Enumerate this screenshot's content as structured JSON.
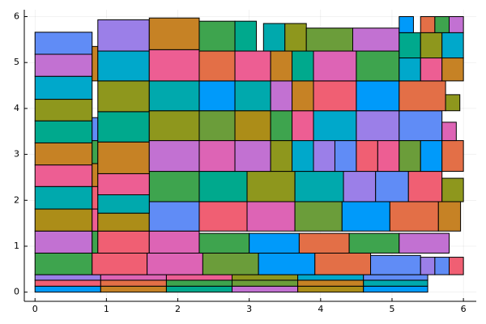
{
  "chart_data": {
    "type": "rectangles",
    "xlim": [
      -0.15,
      6.18
    ],
    "ylim": [
      -0.2,
      6.15
    ],
    "xticks": [
      0,
      1,
      2,
      3,
      4,
      5,
      6
    ],
    "yticks": [
      0,
      1,
      2,
      3,
      4,
      5,
      6
    ],
    "grid": true,
    "rects": [
      [
        0,
        0,
        0.92,
        0.13
      ],
      [
        0.92,
        0,
        1.84,
        0.13
      ],
      [
        1.84,
        0,
        2.76,
        0.13
      ],
      [
        2.76,
        0,
        3.68,
        0.13
      ],
      [
        3.68,
        0,
        4.6,
        0.13
      ],
      [
        4.6,
        0,
        5.5,
        0.13
      ],
      [
        0,
        0.13,
        0.92,
        0.26
      ],
      [
        0.92,
        0.13,
        1.84,
        0.26
      ],
      [
        1.84,
        0.13,
        2.76,
        0.26
      ],
      [
        2.76,
        0.13,
        3.68,
        0.26
      ],
      [
        3.68,
        0.13,
        4.6,
        0.26
      ],
      [
        4.6,
        0.13,
        5.5,
        0.26
      ],
      [
        0,
        0.26,
        0.92,
        0.38
      ],
      [
        0.92,
        0.26,
        1.84,
        0.38
      ],
      [
        1.84,
        0.26,
        2.76,
        0.38
      ],
      [
        2.76,
        0.26,
        3.68,
        0.38
      ],
      [
        3.68,
        0.26,
        4.6,
        0.38
      ],
      [
        4.6,
        0.26,
        5.5,
        0.38
      ],
      [
        0,
        0.38,
        0.8,
        0.85
      ],
      [
        0.8,
        0.38,
        1.57,
        0.85
      ],
      [
        1.57,
        0.38,
        2.35,
        0.85
      ],
      [
        2.35,
        0.38,
        3.13,
        0.85
      ],
      [
        3.13,
        0.38,
        3.92,
        0.85
      ],
      [
        3.92,
        0.38,
        4.7,
        0.85
      ],
      [
        4.7,
        0.38,
        5.4,
        0.8
      ],
      [
        5.4,
        0.38,
        5.6,
        0.76
      ],
      [
        5.6,
        0.38,
        5.8,
        0.76
      ],
      [
        5.8,
        0.38,
        6.0,
        0.76
      ],
      [
        0,
        0.85,
        0.8,
        1.33
      ],
      [
        0.8,
        0.85,
        0.88,
        1.33
      ],
      [
        0.88,
        0.85,
        1.6,
        1.33
      ],
      [
        1.6,
        0.85,
        2.3,
        1.33
      ],
      [
        2.3,
        0.85,
        3.0,
        1.28
      ],
      [
        3.0,
        0.85,
        3.7,
        1.28
      ],
      [
        3.7,
        0.85,
        4.4,
        1.28
      ],
      [
        4.4,
        0.85,
        5.1,
        1.28
      ],
      [
        5.1,
        0.85,
        5.8,
        1.28
      ],
      [
        0,
        1.33,
        0.8,
        1.81
      ],
      [
        0.8,
        1.33,
        0.88,
        1.81
      ],
      [
        0.88,
        1.33,
        1.6,
        1.72
      ],
      [
        1.6,
        1.33,
        2.3,
        1.97
      ],
      [
        2.3,
        1.33,
        2.97,
        1.97
      ],
      [
        2.97,
        1.33,
        3.64,
        1.97
      ],
      [
        3.64,
        1.33,
        4.3,
        1.97
      ],
      [
        4.3,
        1.33,
        4.97,
        1.97
      ],
      [
        4.97,
        1.33,
        5.65,
        1.97
      ],
      [
        5.65,
        1.33,
        5.96,
        1.97
      ],
      [
        1.6,
        1.97,
        2.3,
        2.63
      ],
      [
        2.3,
        1.97,
        2.97,
        2.63
      ],
      [
        2.97,
        1.97,
        3.64,
        2.63
      ],
      [
        3.64,
        1.97,
        4.32,
        2.63
      ],
      [
        4.32,
        1.97,
        4.77,
        2.63
      ],
      [
        4.77,
        1.97,
        5.23,
        2.63
      ],
      [
        5.23,
        1.97,
        5.7,
        2.63
      ],
      [
        5.7,
        1.97,
        6.0,
        2.48
      ],
      [
        0,
        1.81,
        0.8,
        2.3
      ],
      [
        0,
        2.3,
        0.8,
        2.77
      ],
      [
        0,
        2.77,
        0.8,
        3.25
      ],
      [
        0,
        3.25,
        0.8,
        3.73
      ],
      [
        0,
        3.73,
        0.8,
        4.2
      ],
      [
        0,
        4.2,
        0.8,
        4.7
      ],
      [
        0,
        4.7,
        0.8,
        5.18
      ],
      [
        0,
        5.18,
        0.8,
        5.66
      ],
      [
        0.8,
        1.81,
        0.88,
        2.3
      ],
      [
        0.8,
        2.3,
        0.88,
        2.8
      ],
      [
        0.8,
        2.8,
        0.88,
        3.3
      ],
      [
        0.8,
        3.3,
        0.88,
        3.8
      ],
      [
        0.8,
        4.6,
        0.88,
        5.35
      ],
      [
        0.88,
        1.72,
        1.6,
        2.12
      ],
      [
        0.88,
        2.12,
        1.6,
        2.58
      ],
      [
        0.88,
        2.58,
        1.6,
        3.27
      ],
      [
        0.88,
        3.27,
        1.6,
        3.93
      ],
      [
        0.88,
        3.93,
        1.6,
        4.6
      ],
      [
        0.88,
        4.6,
        1.6,
        5.25
      ],
      [
        0.88,
        5.25,
        1.6,
        5.93
      ],
      [
        1.6,
        2.63,
        2.3,
        3.3
      ],
      [
        1.6,
        3.3,
        2.3,
        3.95
      ],
      [
        1.6,
        3.95,
        2.3,
        4.6
      ],
      [
        1.6,
        4.6,
        2.3,
        5.28
      ],
      [
        1.6,
        5.28,
        2.3,
        5.97
      ],
      [
        2.3,
        2.63,
        2.8,
        3.3
      ],
      [
        2.8,
        2.63,
        3.3,
        3.3
      ],
      [
        3.3,
        2.63,
        3.6,
        3.3
      ],
      [
        3.6,
        2.63,
        3.9,
        3.3
      ],
      [
        3.9,
        2.63,
        4.2,
        3.3
      ],
      [
        4.2,
        2.63,
        4.5,
        3.3
      ],
      [
        4.5,
        2.63,
        4.8,
        3.3
      ],
      [
        4.8,
        2.63,
        5.1,
        3.3
      ],
      [
        5.1,
        2.63,
        5.4,
        3.3
      ],
      [
        5.4,
        2.63,
        5.7,
        3.3
      ],
      [
        5.7,
        2.63,
        6.0,
        3.3
      ],
      [
        2.3,
        3.3,
        2.8,
        3.95
      ],
      [
        2.8,
        3.3,
        3.3,
        3.95
      ],
      [
        3.3,
        3.3,
        3.6,
        3.95
      ],
      [
        3.6,
        3.3,
        3.9,
        3.95
      ],
      [
        3.9,
        3.3,
        4.5,
        3.95
      ],
      [
        4.5,
        3.3,
        5.1,
        3.95
      ],
      [
        5.1,
        3.3,
        5.7,
        3.95
      ],
      [
        5.7,
        3.3,
        5.9,
        3.7
      ],
      [
        2.3,
        3.95,
        2.8,
        4.6
      ],
      [
        2.8,
        3.95,
        3.3,
        4.6
      ],
      [
        3.3,
        3.95,
        3.6,
        4.6
      ],
      [
        3.6,
        3.95,
        3.9,
        4.6
      ],
      [
        3.9,
        3.95,
        4.5,
        4.6
      ],
      [
        4.5,
        3.95,
        5.1,
        4.6
      ],
      [
        5.1,
        3.95,
        5.75,
        4.6
      ],
      [
        5.75,
        3.95,
        5.95,
        4.3
      ],
      [
        2.3,
        4.6,
        2.8,
        5.25
      ],
      [
        2.8,
        4.6,
        3.3,
        5.25
      ],
      [
        3.3,
        4.6,
        3.6,
        5.25
      ],
      [
        3.6,
        4.6,
        3.9,
        5.25
      ],
      [
        3.9,
        4.6,
        4.5,
        5.25
      ],
      [
        4.5,
        4.6,
        5.1,
        5.25
      ],
      [
        5.1,
        4.6,
        5.4,
        5.1
      ],
      [
        5.4,
        4.6,
        5.7,
        5.1
      ],
      [
        5.7,
        4.6,
        6.0,
        5.1
      ],
      [
        2.3,
        5.25,
        2.8,
        5.9
      ],
      [
        2.8,
        5.25,
        3.1,
        5.9
      ],
      [
        3.2,
        5.25,
        3.5,
        5.85
      ],
      [
        3.5,
        5.25,
        3.8,
        5.85
      ],
      [
        3.8,
        5.25,
        4.45,
        5.75
      ],
      [
        4.45,
        5.25,
        5.1,
        5.75
      ],
      [
        5.1,
        5.1,
        5.4,
        5.65
      ],
      [
        5.4,
        5.1,
        5.7,
        5.65
      ],
      [
        5.7,
        5.1,
        6.0,
        5.65
      ],
      [
        5.1,
        5.65,
        5.3,
        6.0
      ],
      [
        5.4,
        5.65,
        5.6,
        6.0
      ],
      [
        5.6,
        5.65,
        5.8,
        6.0
      ],
      [
        5.8,
        5.65,
        6.0,
        6.0
      ]
    ],
    "colors": [
      "#009AFA",
      "#C68225",
      "#00A98D",
      "#C271D2",
      "#AC8D18",
      "#009AFA",
      "#F05F73",
      "#E36F47",
      "#3EA44E",
      "#6B9D3A",
      "#C68225",
      "#00A9AD",
      "#9B7FE8",
      "#DD64B5",
      "#ED5E93",
      "#8E971D",
      "#00A8CB",
      "#608CF6",
      "#3EA44E",
      "#F05F73",
      "#DD64B5",
      "#6B9D3A",
      "#009AFA",
      "#E36F47",
      "#608CF6",
      "#9B7FE8",
      "#608CF6",
      "#F05F73",
      "#C271D2",
      "#3EA44E",
      "#F05F73",
      "#DD64B5",
      "#3EA44E",
      "#009AFA",
      "#E36F47",
      "#3EA44E",
      "#C271D2",
      "#AC8D18",
      "#ED5E93",
      "#AC8D18",
      "#608CF6",
      "#F05F73",
      "#DD64B5",
      "#6B9D3A",
      "#009AFA",
      "#E36F47",
      "#C68225",
      "#3EA44E",
      "#00A98D",
      "#8E971D",
      "#00A9AD",
      "#9B7FE8",
      "#608CF6",
      "#F05F73",
      "#8E971D",
      "#00A9AD",
      "#ED5E93",
      "#C68225",
      "#00A98D",
      "#8E971D",
      "#00A8CB",
      "#C271D2",
      "#608CF6",
      "#F05F73",
      "#C68225",
      "#3EA44E",
      "#608CF6",
      "#C68225",
      "#00A9AD",
      "#ED5E93",
      "#C68225",
      "#00A98D",
      "#8E971D",
      "#00A8CB",
      "#9B7FE8",
      "#C271D2",
      "#8E971D",
      "#00A9AD",
      "#ED5E93",
      "#C68225",
      "#DD64B5",
      "#C271D2",
      "#8E971D",
      "#00A8CB",
      "#9B7FE8",
      "#608CF6",
      "#F05F73",
      "#ED5E93",
      "#6B9D3A",
      "#009AFA",
      "#E36F47",
      "#6B9D3A",
      "#AC8D18",
      "#3EA44E",
      "#ED5E93",
      "#00A8CB",
      "#9B7FE8",
      "#608CF6",
      "#DD64B5",
      "#009AFA",
      "#00A9AD",
      "#C271D2",
      "#C68225",
      "#F05F73",
      "#009AFA",
      "#E36F47",
      "#8E971D",
      "#E36F47",
      "#ED5E93",
      "#C68225",
      "#00A98D",
      "#DD64B5",
      "#3EA44E",
      "#00A8CB",
      "#ED5E93",
      "#C68225",
      "#3EA44E",
      "#00A98D",
      "#00A9AD",
      "#8E971D",
      "#6B9D3A",
      "#C271D2",
      "#00A98D",
      "#8E971D",
      "#00A8CB",
      "#009AFA",
      "#E36F47",
      "#3EA44E",
      "#C271D2"
    ]
  }
}
